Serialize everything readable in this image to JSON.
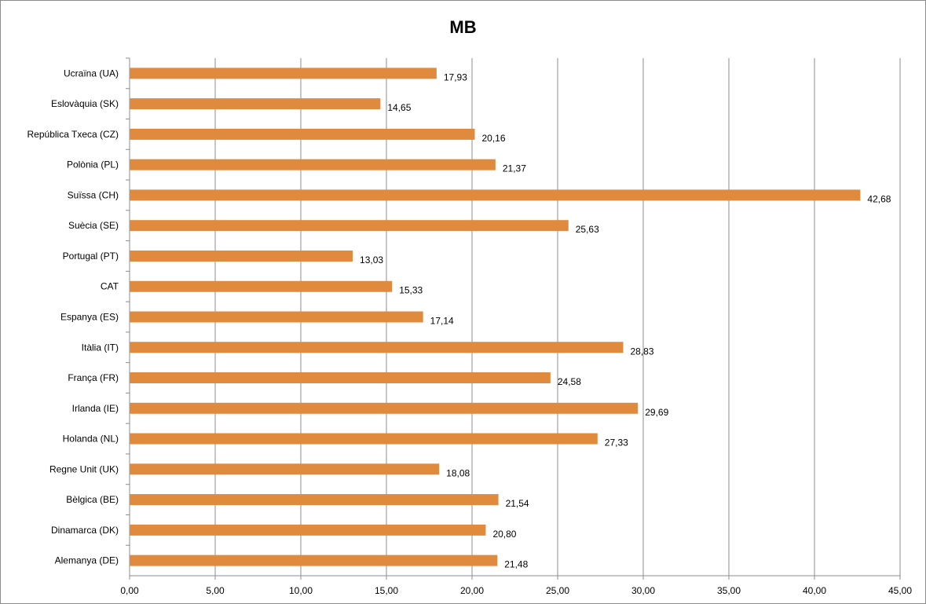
{
  "chart_data": {
    "type": "bar",
    "orientation": "horizontal",
    "title": "MB",
    "categories": [
      "Alemanya (DE)",
      "Dinamarca (DK)",
      "Bèlgica (BE)",
      "Regne Unit (UK)",
      "Holanda (NL)",
      "Irlanda (IE)",
      "França (FR)",
      "Itàlia (IT)",
      "Espanya (ES)",
      "CAT",
      "Portugal (PT)",
      "Suècia (SE)",
      "Suïssa (CH)",
      "Polònia (PL)",
      "República Txeca (CZ)",
      "Eslovàquia (SK)",
      "Ucraïna (UA)"
    ],
    "values": [
      21.48,
      20.8,
      21.54,
      18.08,
      27.33,
      29.69,
      24.58,
      28.83,
      17.14,
      15.33,
      13.03,
      25.63,
      42.68,
      21.37,
      20.16,
      14.65,
      17.93
    ],
    "value_labels": [
      "21,48",
      "20,80",
      "21,54",
      "18,08",
      "27,33",
      "29,69",
      "24,58",
      "28,83",
      "17,14",
      "15,33",
      "13,03",
      "25,63",
      "42,68",
      "21,37",
      "20,16",
      "14,65",
      "17,93"
    ],
    "xlim": [
      0,
      45
    ],
    "x_ticks": [
      "0,00",
      "5,00",
      "10,00",
      "15,00",
      "20,00",
      "25,00",
      "30,00",
      "35,00",
      "40,00",
      "45,00"
    ],
    "xlabel": "",
    "ylabel": "",
    "grid": "vertical",
    "legend": "none",
    "bar_color": "#E08A3E"
  }
}
